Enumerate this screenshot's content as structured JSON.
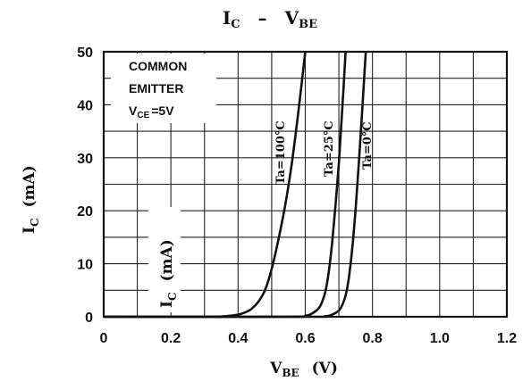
{
  "chart_data": {
    "type": "line",
    "title": {
      "main": "I",
      "main_sub": "C",
      "dash": "–",
      "second": "V",
      "second_sub": "BE"
    },
    "xlabel": {
      "main": "V",
      "sub": "BE",
      "unit": "(V)"
    },
    "ylabel": {
      "main": "I",
      "sub": "C",
      "unit": "(mA)"
    },
    "inner_ylabel": {
      "main": "I",
      "sub": "C",
      "unit": "(mA)"
    },
    "xlim": [
      0,
      1.2
    ],
    "ylim": [
      0,
      50
    ],
    "x_ticks": [
      0,
      0.2,
      0.4,
      0.6,
      0.8,
      1.0,
      1.2
    ],
    "x_tick_labels": [
      "0",
      "0.2",
      "0.4",
      "0.6",
      "0.8",
      "1.0",
      "1.2"
    ],
    "y_ticks": [
      0,
      10,
      20,
      30,
      40,
      50
    ],
    "y_tick_labels": [
      "0",
      "10",
      "20",
      "30",
      "40",
      "50"
    ],
    "x_grid_step": 0.1,
    "y_grid_step": 5,
    "grid": true,
    "legend": {
      "placement": "top-left",
      "lines": [
        "COMMON",
        "EMITTER"
      ],
      "condition": {
        "main": "V",
        "sub": "CE",
        "value": "=5V"
      }
    },
    "series": [
      {
        "name": "Ta=100°C",
        "x": [
          0.3,
          0.36,
          0.4,
          0.42,
          0.44,
          0.46,
          0.48,
          0.5,
          0.52,
          0.54,
          0.56,
          0.58,
          0.6
        ],
        "y": [
          0.0,
          0.1,
          0.4,
          0.8,
          1.5,
          2.8,
          5.0,
          9.0,
          14.5,
          21.0,
          29.0,
          39.0,
          50.0
        ]
      },
      {
        "name": "Ta=25°C",
        "x": [
          0.55,
          0.6,
          0.62,
          0.64,
          0.65,
          0.66,
          0.67,
          0.68,
          0.69,
          0.7,
          0.71,
          0.72
        ],
        "y": [
          0.0,
          0.2,
          0.6,
          1.6,
          2.8,
          4.8,
          8.5,
          14.0,
          21.0,
          29.0,
          39.0,
          50.0
        ]
      },
      {
        "name": "Ta=0°C",
        "x": [
          0.6,
          0.66,
          0.68,
          0.7,
          0.71,
          0.72,
          0.73,
          0.74,
          0.75,
          0.76,
          0.77,
          0.78
        ],
        "y": [
          0.0,
          0.1,
          0.4,
          1.2,
          2.2,
          4.0,
          7.5,
          13.0,
          20.5,
          29.5,
          39.5,
          50.0
        ]
      }
    ]
  }
}
